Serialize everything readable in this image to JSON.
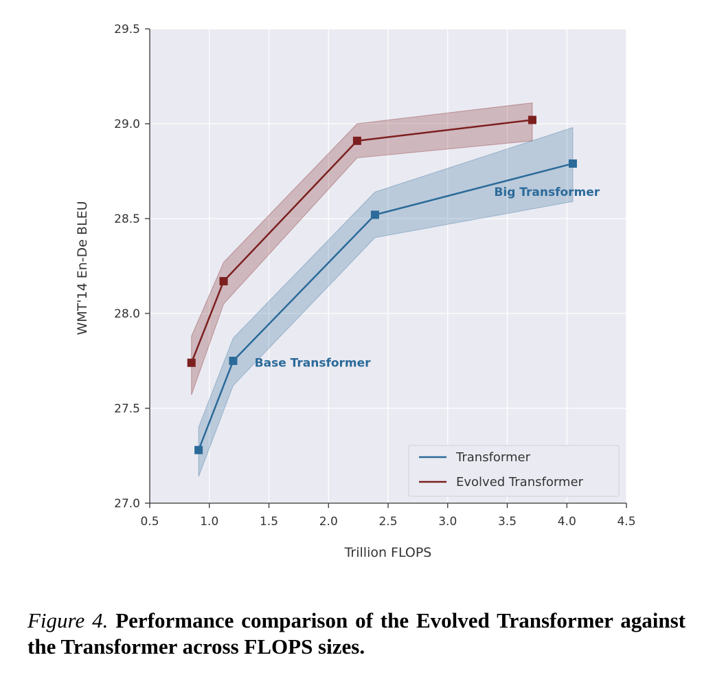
{
  "chart_data": {
    "type": "line",
    "title": "",
    "xlabel": "Trillion FLOPS",
    "ylabel": "WMT'14 En-De BLEU",
    "xlim": [
      0.5,
      4.5
    ],
    "ylim": [
      27.0,
      29.5
    ],
    "x_ticks": [
      "0.5",
      "1.0",
      "1.5",
      "2.0",
      "2.5",
      "3.0",
      "3.5",
      "4.0",
      "4.5"
    ],
    "y_ticks": [
      "27.0",
      "27.5",
      "28.0",
      "28.5",
      "29.0",
      "29.5"
    ],
    "grid": true,
    "legend_position": "bottom-right",
    "series": [
      {
        "name": "Transformer",
        "color": "#2b6a99",
        "x": [
          0.91,
          1.2,
          2.39,
          4.05
        ],
        "y": [
          27.28,
          27.75,
          28.52,
          28.79
        ],
        "upper": [
          27.4,
          27.87,
          28.64,
          28.98
        ],
        "lower": [
          27.14,
          27.62,
          28.4,
          28.59
        ]
      },
      {
        "name": "Evolved Transformer",
        "color": "#7c1f1f",
        "x": [
          0.85,
          1.12,
          2.24,
          3.71
        ],
        "y": [
          27.74,
          28.17,
          28.91,
          29.02
        ],
        "upper": [
          27.88,
          28.27,
          29.0,
          29.11
        ],
        "lower": [
          27.57,
          28.05,
          28.82,
          28.91
        ]
      }
    ],
    "annotations": [
      {
        "text": "Base Transformer",
        "x": 1.38,
        "y": 27.72,
        "color": "#2b6a99"
      },
      {
        "text": "Big Transformer",
        "x": 3.39,
        "y": 28.62,
        "color": "#2b6a99"
      }
    ]
  },
  "caption": {
    "label": "Figure 4.",
    "text": "Performance comparison of the Evolved Transformer against the Transformer across FLOPS sizes."
  }
}
